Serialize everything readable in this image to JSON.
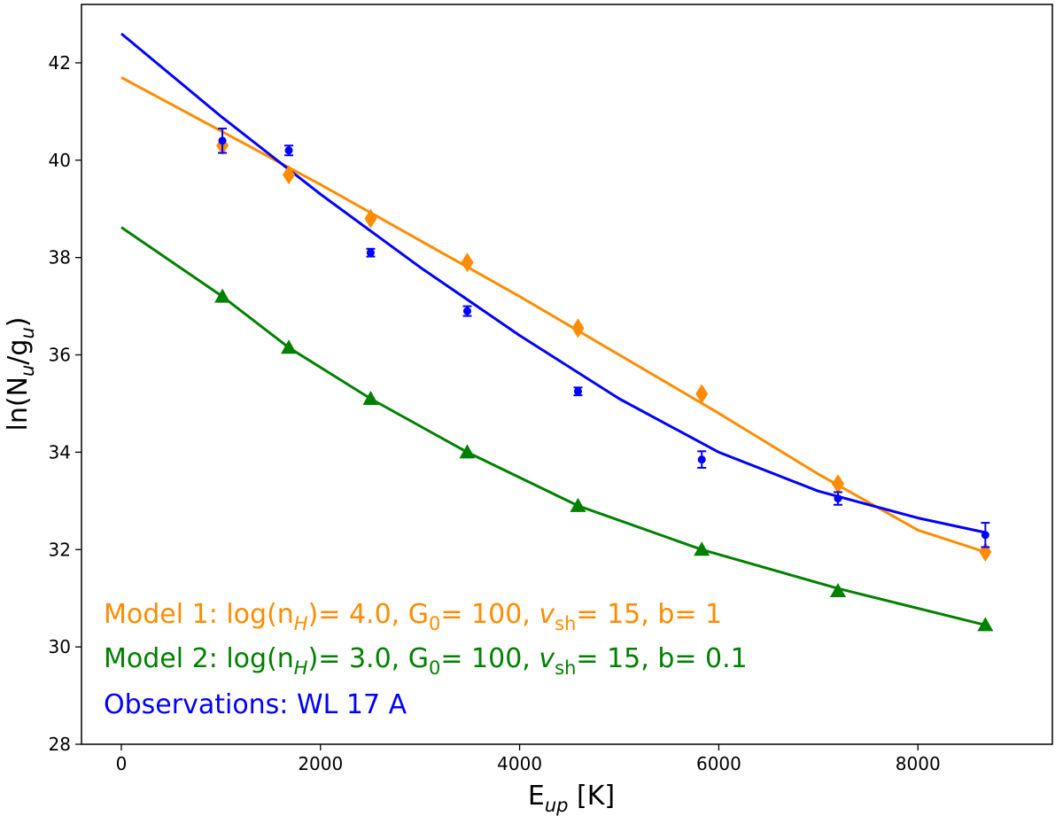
{
  "chart_data": {
    "type": "scatter",
    "xlabel": "E_up [K]",
    "ylabel": "ln(N_u/g_u)",
    "xlim": [
      -400,
      9350
    ],
    "ylim": [
      28,
      43.2
    ],
    "xticks": [
      0,
      2000,
      4000,
      6000,
      8000
    ],
    "xtick_labels": [
      "0",
      "2000",
      "4000",
      "6000",
      "8000"
    ],
    "yticks": [
      28,
      30,
      32,
      34,
      36,
      38,
      40,
      42
    ],
    "ytick_labels": [
      "28",
      "30",
      "32",
      "34",
      "36",
      "38",
      "40",
      "42"
    ],
    "grid": false,
    "legend_position": "bottom-left",
    "series": [
      {
        "name": "Model 1: log(n_H)= 4.0, G_0= 100, v_sh= 15, b= 1",
        "color": "#ff8c00",
        "marker": "diamond",
        "x": [
          1015,
          1682,
          2504,
          3474,
          4586,
          5829,
          7197,
          8677
        ],
        "y": [
          40.3,
          39.7,
          38.8,
          37.9,
          36.55,
          35.2,
          33.35,
          31.95
        ],
        "fit_x": [
          0,
          1000,
          2000,
          3000,
          4000,
          5000,
          6000,
          7000,
          8000,
          8677
        ],
        "fit_y": [
          41.7,
          40.6,
          39.5,
          38.35,
          37.2,
          36.0,
          34.8,
          33.55,
          32.4,
          31.95
        ]
      },
      {
        "name": "Model 2: log(n_H)= 3.0, G_0= 100, v_sh= 15, b= 0.1",
        "color": "#008000",
        "marker": "triangle",
        "x": [
          1015,
          1682,
          2504,
          3474,
          4586,
          5829,
          7197,
          8677
        ],
        "y": [
          37.2,
          36.15,
          35.1,
          34.0,
          32.9,
          32.0,
          31.15,
          30.45
        ],
        "fit_x": [
          0,
          1015,
          1682,
          2504,
          3474,
          4586,
          5829,
          7197,
          8677
        ],
        "fit_y": [
          38.62,
          37.2,
          36.15,
          35.1,
          34.0,
          32.9,
          32.0,
          31.2,
          30.45
        ]
      },
      {
        "name": "Observations: WL 17 A",
        "color": "#0000ff",
        "marker": "circle",
        "x": [
          1015,
          1682,
          2504,
          3474,
          4586,
          5829,
          7197,
          8677
        ],
        "y": [
          40.4,
          40.2,
          38.1,
          36.9,
          35.25,
          33.85,
          33.05,
          32.3
        ],
        "err": [
          0.25,
          0.1,
          0.08,
          0.1,
          0.08,
          0.17,
          0.13,
          0.25
        ],
        "fit_x": [
          0,
          1000,
          2000,
          3000,
          4000,
          5000,
          6000,
          7000,
          8000,
          8677
        ],
        "fit_y": [
          42.6,
          40.9,
          39.3,
          37.8,
          36.4,
          35.1,
          34.0,
          33.2,
          32.65,
          32.35
        ]
      }
    ]
  }
}
